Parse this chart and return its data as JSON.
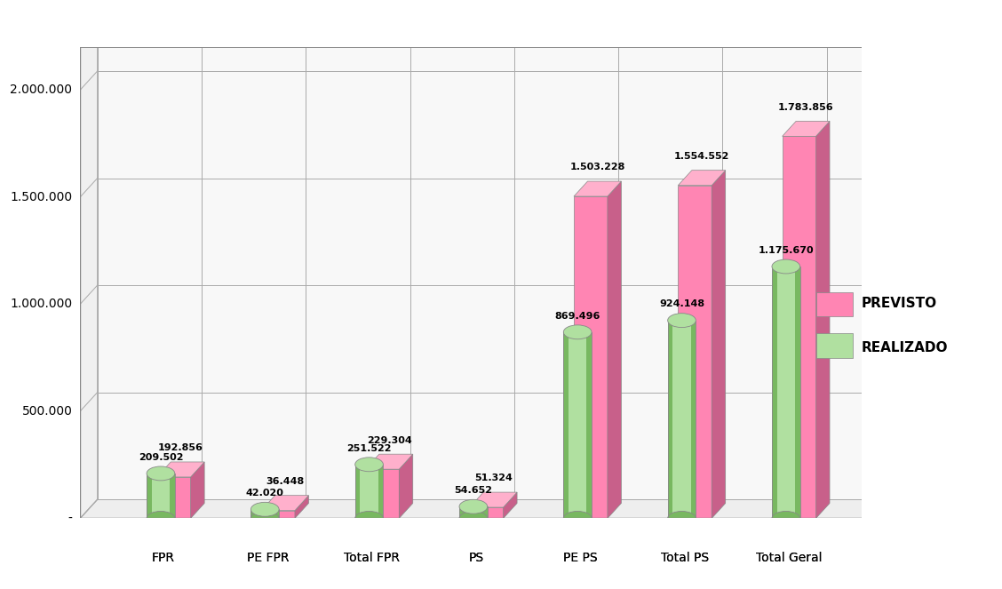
{
  "categories": [
    "FPR",
    "PE FPR",
    "Total FPR",
    "PS",
    "PE PS",
    "Total PS",
    "Total Geral"
  ],
  "previsto": [
    192856,
    36448,
    229304,
    51324,
    1503228,
    1554552,
    1783856
  ],
  "realizado": [
    209502,
    42020,
    251522,
    54652,
    869496,
    924148,
    1175670
  ],
  "pink_light": "#FF85B3",
  "pink_dark": "#C8608A",
  "pink_top": "#FFB0CC",
  "green_light": "#B0E0A0",
  "green_dark": "#78B860",
  "green_mid": "#90CC80",
  "background_color": "#FFFFFF",
  "ymax": 2200000,
  "yticks": [
    0,
    500000,
    1000000,
    1500000,
    2000000
  ],
  "ytick_labels": [
    "-",
    "500.000",
    "1.000.000",
    "1.500.000",
    "2.000.000"
  ],
  "legend_labels": [
    "PREVISTO",
    "REALIZADO"
  ],
  "value_labels_previsto": [
    "192.856",
    "36.448",
    "229.304",
    "51.324",
    "1.503.228",
    "1.554.552",
    "1.783.856"
  ],
  "value_labels_realizado": [
    "209.502",
    "42.020",
    "251.522",
    "54.652",
    "869.496",
    "924.148",
    "1.175.670"
  ]
}
